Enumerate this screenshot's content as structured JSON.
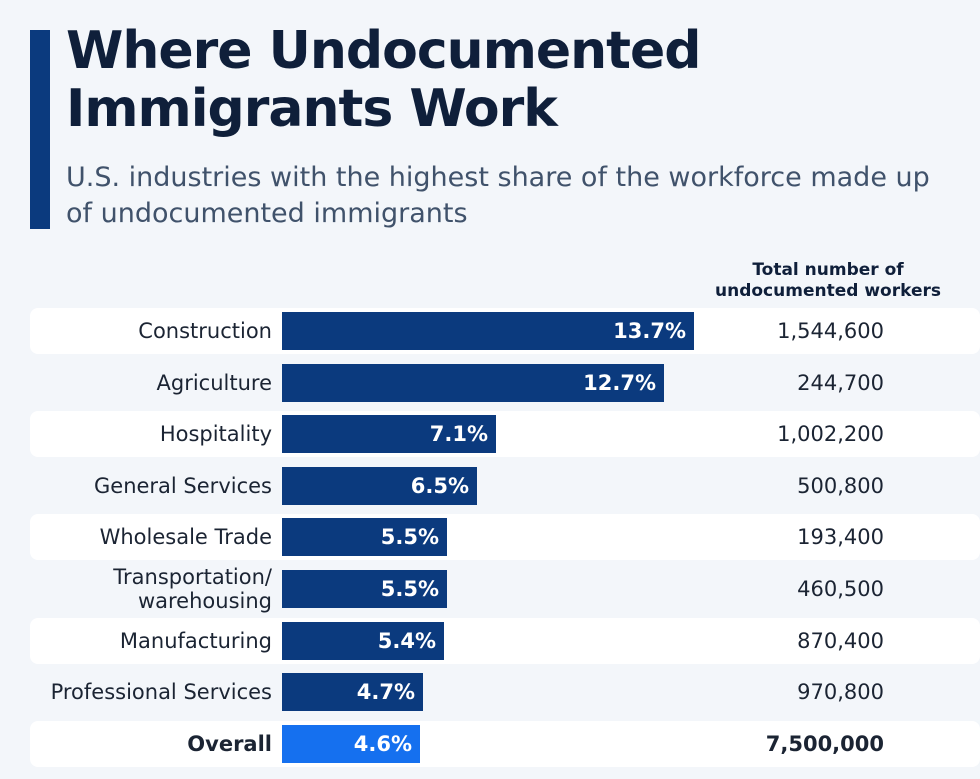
{
  "header": {
    "title": "Where Undocumented Immigrants Work",
    "subtitle": "U.S. industries with the highest share of the workforce made up of undocumented immigrants",
    "column_header": "Total number of undocumented workers"
  },
  "colors": {
    "bar": "#0b3a7e",
    "bar_overall": "#1570ef",
    "accent": "#0b3a7e",
    "background": "#f3f6fa"
  },
  "chart_data": {
    "type": "bar",
    "orientation": "horizontal",
    "title": "Where Undocumented Immigrants Work",
    "subtitle": "U.S. industries with the highest share of the workforce made up of undocumented immigrants",
    "categories": [
      "Construction",
      "Agriculture",
      "Hospitality",
      "General Services",
      "Wholesale Trade",
      "Transportation/ warehousing",
      "Manufacturing",
      "Professional Services",
      "Overall"
    ],
    "values": [
      13.7,
      12.7,
      7.1,
      6.5,
      5.5,
      5.5,
      5.4,
      4.7,
      4.6
    ],
    "value_labels": [
      "13.7%",
      "12.7%",
      "7.1%",
      "6.5%",
      "5.5%",
      "5.5%",
      "5.4%",
      "4.7%",
      "4.6%"
    ],
    "unit": "%",
    "xlim": [
      0,
      13.7
    ],
    "total_workers_header": "Total number of undocumented workers",
    "total_workers": [
      "1,544,600",
      "244,700",
      "1,002,200",
      "500,800",
      "193,400",
      "460,500",
      "870,400",
      "970,800",
      "7,500,000"
    ],
    "highlighted_category": "Overall",
    "grid": false,
    "legend": "none"
  }
}
